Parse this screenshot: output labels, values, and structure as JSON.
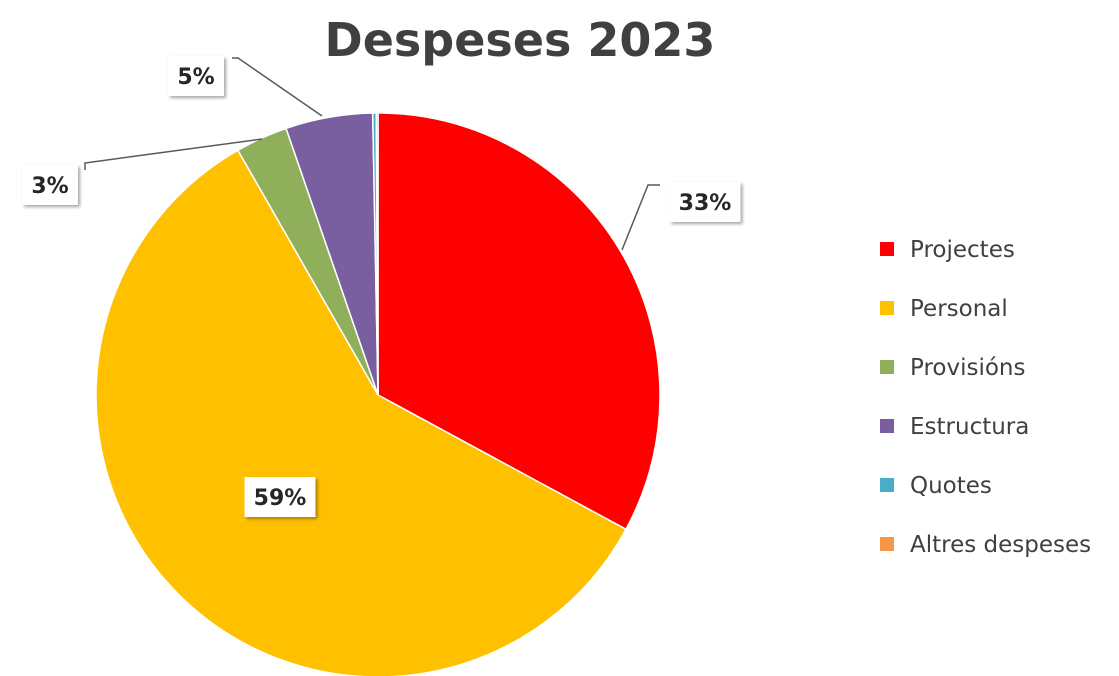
{
  "chart_data": {
    "type": "pie",
    "title": "Despeses 2023",
    "categories": [
      "Projectes",
      "Personal",
      "Provisións",
      "Estructura",
      "Quotes",
      "Altres despeses"
    ],
    "values": [
      33,
      59,
      3,
      5,
      0.2,
      0.1
    ],
    "data_labels": [
      "33%",
      "59%",
      "3%",
      "5%",
      "",
      ""
    ],
    "colors": [
      "#ff0000",
      "#ffc000",
      "#8faf5a",
      "#7a5fa0",
      "#4bacc6",
      "#f79646"
    ],
    "legend": {
      "position": "right",
      "entries": [
        "Projectes",
        "Personal",
        "Provisións",
        "Estructura",
        "Quotes",
        "Altres despeses"
      ]
    }
  }
}
